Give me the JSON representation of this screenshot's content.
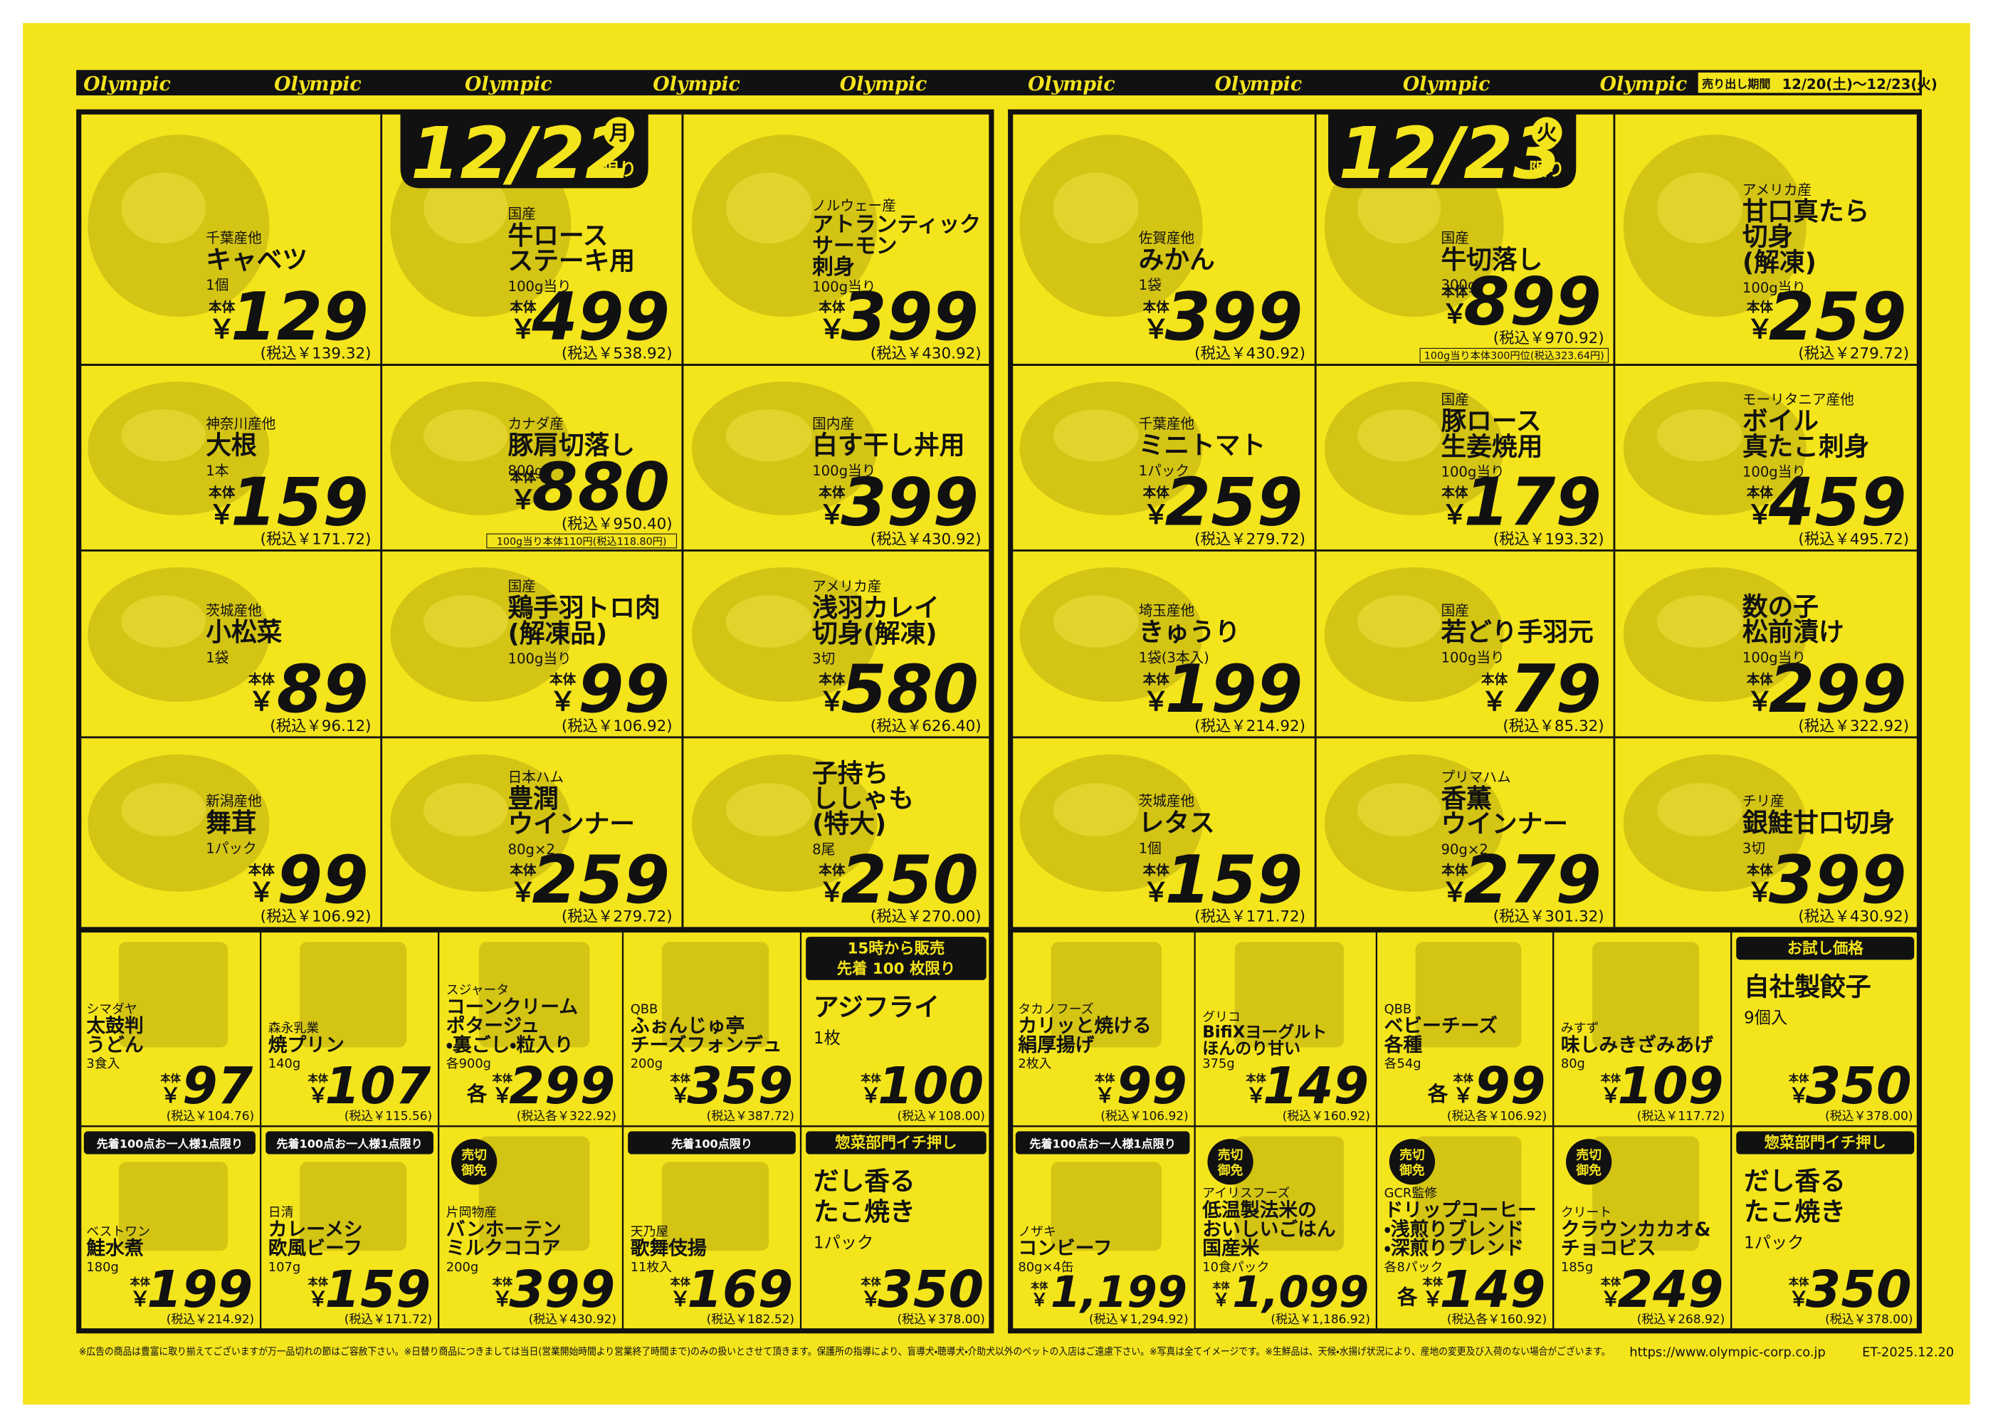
{
  "header": {
    "brand": "Olympic",
    "period_label": "売り出し期間",
    "period": "12/20(土)～12/23(火)"
  },
  "labels": {
    "base": "本体",
    "yen": "￥",
    "each": "各",
    "badge": [
      "売切",
      "御免"
    ]
  },
  "panels": [
    {
      "date": "12/22",
      "weekday": "月",
      "limit": "限り",
      "items": [
        {
          "origin": "千葉産他",
          "name": [
            "キャベツ"
          ],
          "qty": "1個",
          "price": "129",
          "tax": "(税込￥139.32)"
        },
        {
          "origin": "国産",
          "name": [
            "牛ロース",
            "ステーキ用"
          ],
          "qty": "100g当り",
          "price": "499",
          "tax": "(税込￥538.92)"
        },
        {
          "origin": "ノルウェー産",
          "name": [
            "アトランティック",
            "サーモン",
            "刺身"
          ],
          "qty": "100g当り",
          "price": "399",
          "tax": "(税込￥430.92)"
        },
        {
          "origin": "神奈川産他",
          "name": [
            "大根"
          ],
          "qty": "1本",
          "price": "159",
          "tax": "(税込￥171.72)"
        },
        {
          "origin": "カナダ産",
          "name": [
            "豚肩切落し"
          ],
          "qty": "800g",
          "price": "880",
          "tax": "(税込￥950.40)",
          "note": "100g当り本体110円(税込118.80円)"
        },
        {
          "origin": "国内産",
          "name": [
            "白す干し丼用"
          ],
          "qty": "100g当り",
          "price": "399",
          "tax": "(税込￥430.92)"
        },
        {
          "origin": "茨城産他",
          "name": [
            "小松菜"
          ],
          "qty": "1袋",
          "price": "89",
          "tax": "(税込￥96.12)"
        },
        {
          "origin": "国産",
          "name": [
            "鶏手羽トロ肉",
            "(解凍品)"
          ],
          "qty": "100g当り",
          "price": "99",
          "tax": "(税込￥106.92)"
        },
        {
          "origin": "アメリカ産",
          "name": [
            "浅羽カレイ",
            "切身(解凍)"
          ],
          "qty": "3切",
          "price": "580",
          "tax": "(税込￥626.40)"
        },
        {
          "origin": "新潟産他",
          "name": [
            "舞茸"
          ],
          "qty": "1パック",
          "price": "99",
          "tax": "(税込￥106.92)"
        },
        {
          "origin": "日本ハム",
          "name": [
            "豊潤",
            "ウインナー"
          ],
          "qty": "80g×2",
          "price": "259",
          "tax": "(税込￥279.72)"
        },
        {
          "name": [
            "子持ち",
            "ししゃも",
            "(特大)"
          ],
          "qty": "8尾",
          "price": "250",
          "tax": "(税込￥270.00)"
        }
      ],
      "bottom": [
        {
          "maker": "シマダヤ",
          "name": [
            "太鼓判",
            "うどん"
          ],
          "qty": "3食入",
          "price": "97",
          "tax": "(税込￥104.76)"
        },
        {
          "maker": "森永乳業",
          "name": [
            "焼プリン"
          ],
          "qty": "140g",
          "price": "107",
          "tax": "(税込￥115.56)"
        },
        {
          "maker": "スジャータ",
          "name": [
            "コーンクリーム",
            "ポタージュ",
            "・裏ごし・粒入り"
          ],
          "qty": "各900g",
          "each": true,
          "price": "299",
          "tax": "(税込各￥322.92)"
        },
        {
          "maker": "QBB",
          "name": [
            "ふぉんじゅ亭",
            "チーズフォンデュ"
          ],
          "qty": "200g",
          "price": "359",
          "tax": "(税込￥387.72)"
        },
        {
          "tag": [
            "15時から販売",
            "先着 100 枚限り"
          ],
          "name": [
            "アジフライ"
          ],
          "qty": "1枚",
          "price": "100",
          "tax": "(税込￥108.00)"
        },
        {
          "tag": [
            "先着100点お一人様1点限り"
          ],
          "maker": "ベストワン",
          "name": [
            "鮭水煮"
          ],
          "qty": "180g",
          "price": "199",
          "tax": "(税込￥214.92)"
        },
        {
          "tag": [
            "先着100点お一人様1点限り"
          ],
          "maker": "日清",
          "name": [
            "カレーメシ",
            "欧風ビーフ"
          ],
          "qty": "107g",
          "price": "159",
          "tax": "(税込￥171.72)"
        },
        {
          "badge": true,
          "maker": "片岡物産",
          "name": [
            "バンホーテン",
            "ミルクココア"
          ],
          "qty": "200g",
          "price": "399",
          "tax": "(税込￥430.92)"
        },
        {
          "tag": [
            "先着100点限り"
          ],
          "maker": "天乃屋",
          "name": [
            "歌舞伎揚"
          ],
          "qty": "11枚入",
          "price": "169",
          "tax": "(税込￥182.52)"
        },
        {
          "tag": [
            "惣菜部門イチ押し"
          ],
          "name": [
            "だし香る",
            "たこ焼き"
          ],
          "qty": "1パック",
          "price": "350",
          "tax": "(税込￥378.00)"
        }
      ]
    },
    {
      "date": "12/23",
      "weekday": "火",
      "limit": "限り",
      "items": [
        {
          "origin": "佐賀産他",
          "name": [
            "みかん"
          ],
          "qty": "1袋",
          "price": "399",
          "tax": "(税込￥430.92)"
        },
        {
          "origin": "国産",
          "name": [
            "牛切落し"
          ],
          "qty": "300g",
          "price": "899",
          "tax": "(税込￥970.92)",
          "note": "100g当り本体300円位(税込323.64円)"
        },
        {
          "origin": "アメリカ産",
          "name": [
            "甘口真たら",
            "切身",
            "(解凍)"
          ],
          "qty": "100g当り",
          "price": "259",
          "tax": "(税込￥279.72)"
        },
        {
          "origin": "千葉産他",
          "name": [
            "ミニトマト"
          ],
          "qty": "1パック",
          "price": "259",
          "tax": "(税込￥279.72)"
        },
        {
          "origin": "国産",
          "name": [
            "豚ロース",
            "生姜焼用"
          ],
          "qty": "100g当り",
          "price": "179",
          "tax": "(税込￥193.32)"
        },
        {
          "origin": "モーリタニア産他",
          "name": [
            "ボイル",
            "真たこ刺身"
          ],
          "qty": "100g当り",
          "price": "459",
          "tax": "(税込￥495.72)"
        },
        {
          "origin": "埼玉産他",
          "name": [
            "きゅうり"
          ],
          "qty": "1袋(3本入)",
          "price": "199",
          "tax": "(税込￥214.92)"
        },
        {
          "origin": "国産",
          "name": [
            "若どり手羽元"
          ],
          "qty": "100g当り",
          "price": "79",
          "tax": "(税込￥85.32)"
        },
        {
          "name": [
            "数の子",
            "松前漬け"
          ],
          "qty": "100g当り",
          "price": "299",
          "tax": "(税込￥322.92)"
        },
        {
          "origin": "茨城産他",
          "name": [
            "レタス"
          ],
          "qty": "1個",
          "price": "159",
          "tax": "(税込￥171.72)"
        },
        {
          "origin": "プリマハム",
          "name": [
            "香薫",
            "ウインナー"
          ],
          "qty": "90g×2",
          "price": "279",
          "tax": "(税込￥301.32)"
        },
        {
          "origin": "チリ産",
          "name": [
            "銀鮭甘口切身"
          ],
          "qty": "3切",
          "price": "399",
          "tax": "(税込￥430.92)"
        }
      ],
      "bottom": [
        {
          "maker": "タカノフーズ",
          "name": [
            "カリッと焼ける",
            "絹厚揚げ"
          ],
          "qty": "2枚入",
          "price": "99",
          "tax": "(税込￥106.92)"
        },
        {
          "maker": "グリコ",
          "name": [
            "BifiXヨーグルト",
            "ほんのり甘い"
          ],
          "qty": "375g",
          "price": "149",
          "tax": "(税込￥160.92)"
        },
        {
          "maker": "QBB",
          "name": [
            "ベビーチーズ",
            "各種"
          ],
          "qty": "各54g",
          "each": true,
          "price": "99",
          "tax": "(税込各￥106.92)"
        },
        {
          "maker": "みすず",
          "name": [
            "味しみきざみあげ"
          ],
          "qty": "80g",
          "price": "109",
          "tax": "(税込￥117.72)"
        },
        {
          "tag": [
            "お試し価格"
          ],
          "name": [
            "自社製餃子"
          ],
          "qty": "9個入",
          "price": "350",
          "tax": "(税込￥378.00)"
        },
        {
          "tag": [
            "先着100点お一人様1点限り"
          ],
          "maker": "ノザキ",
          "name": [
            "コンビーフ"
          ],
          "qty": "80g×4缶",
          "price": "1,199",
          "tax": "(税込￥1,294.92)"
        },
        {
          "badge": true,
          "maker": "アイリスフーズ",
          "name": [
            "低温製法米の",
            "おいしいごはん",
            "国産米"
          ],
          "qty": "10食パック",
          "price": "1,099",
          "tax": "(税込￥1,186.92)"
        },
        {
          "badge": true,
          "maker": "GCR監修",
          "name": [
            "ドリップコーヒー",
            "・浅煎りブレンド",
            "・深煎りブレンド"
          ],
          "qty": "各8パック",
          "each": true,
          "price": "149",
          "tax": "(税込各￥160.92)"
        },
        {
          "badge": true,
          "maker": "クリート",
          "name": [
            "クラウンカカオ&",
            "チョコビス"
          ],
          "qty": "185g",
          "price": "249",
          "tax": "(税込￥268.92)"
        },
        {
          "tag": [
            "惣菜部門イチ押し"
          ],
          "name": [
            "だし香る",
            "たこ焼き"
          ],
          "qty": "1パック",
          "price": "350",
          "tax": "(税込￥378.00)"
        }
      ]
    }
  ],
  "footer": {
    "note": "※広告の商品は豊富に取り揃えてございますが万一品切れの節はご容赦下さい。※日替り商品につきましては当日(営業開始時間より営業終了時間まで)のみの扱いとさせて頂きます。保護所の指導により、盲導犬・聴導犬・介助犬以外のペットの入店はご遠慮下さい。※写真は全てイメージです。※生鮮品は、天候・水揚げ状況により、産地の変更及び入荷のない場合がございます。",
    "url": "https://www.olympic-corp.co.jp",
    "code": "ET-2025.12.20"
  }
}
